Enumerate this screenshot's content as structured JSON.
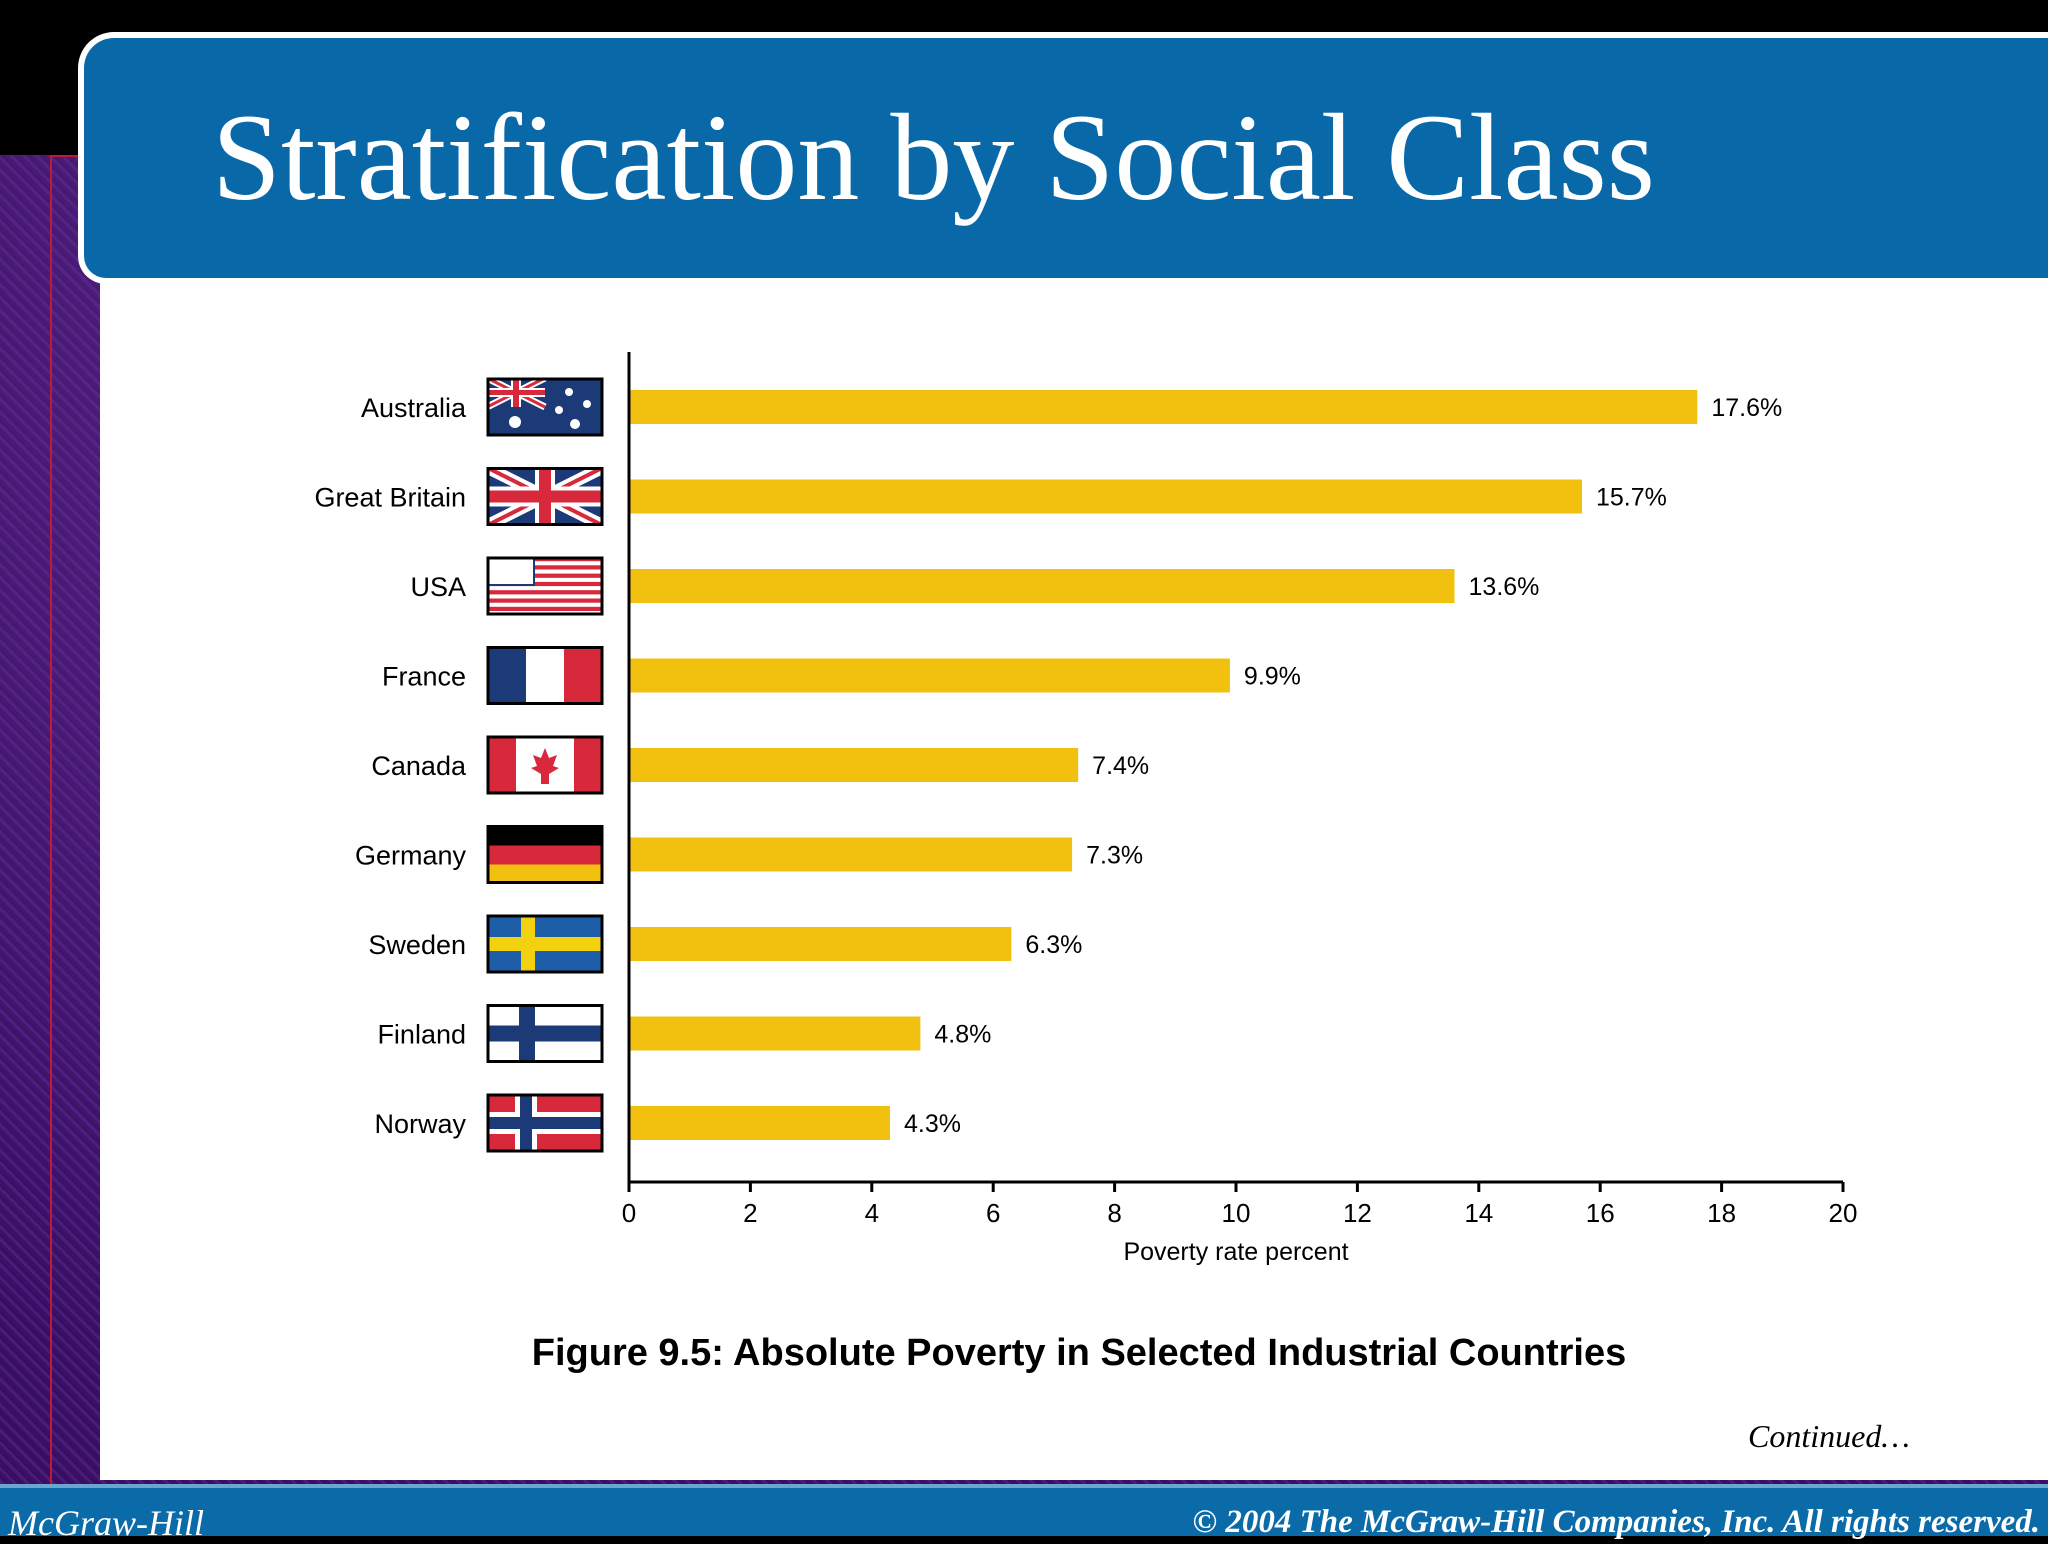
{
  "slide": {
    "title": "Stratification by Social Class",
    "caption": "Figure 9.5: Absolute Poverty in Selected Industrial Countries",
    "continued": "Continued…",
    "footer_left": "McGraw-Hill",
    "footer_right": "© 2004 The McGraw-Hill Companies, Inc. All rights reserved."
  },
  "colors": {
    "header": "#0969a8",
    "bar": "#f2c10f",
    "background": "#3b0f66"
  },
  "chart_data": {
    "type": "bar",
    "orientation": "horizontal",
    "categories": [
      "Australia",
      "Great Britain",
      "USA",
      "France",
      "Canada",
      "Germany",
      "Sweden",
      "Finland",
      "Norway"
    ],
    "flags": [
      "australia-flag-icon",
      "great-britain-flag-icon",
      "usa-flag-icon",
      "france-flag-icon",
      "canada-flag-icon",
      "germany-flag-icon",
      "sweden-flag-icon",
      "finland-flag-icon",
      "norway-flag-icon"
    ],
    "values": [
      17.6,
      15.7,
      13.6,
      9.9,
      7.4,
      7.3,
      6.3,
      4.8,
      4.3
    ],
    "value_labels": [
      "17.6%",
      "15.7%",
      "13.6%",
      "9.9%",
      "7.4%",
      "7.3%",
      "6.3%",
      "4.8%",
      "4.3%"
    ],
    "xlabel": "Poverty rate percent",
    "xlim": [
      0,
      20
    ],
    "xticks": [
      0,
      2,
      4,
      6,
      8,
      10,
      12,
      14,
      16,
      18,
      20
    ],
    "grid": false,
    "legend": "none"
  }
}
